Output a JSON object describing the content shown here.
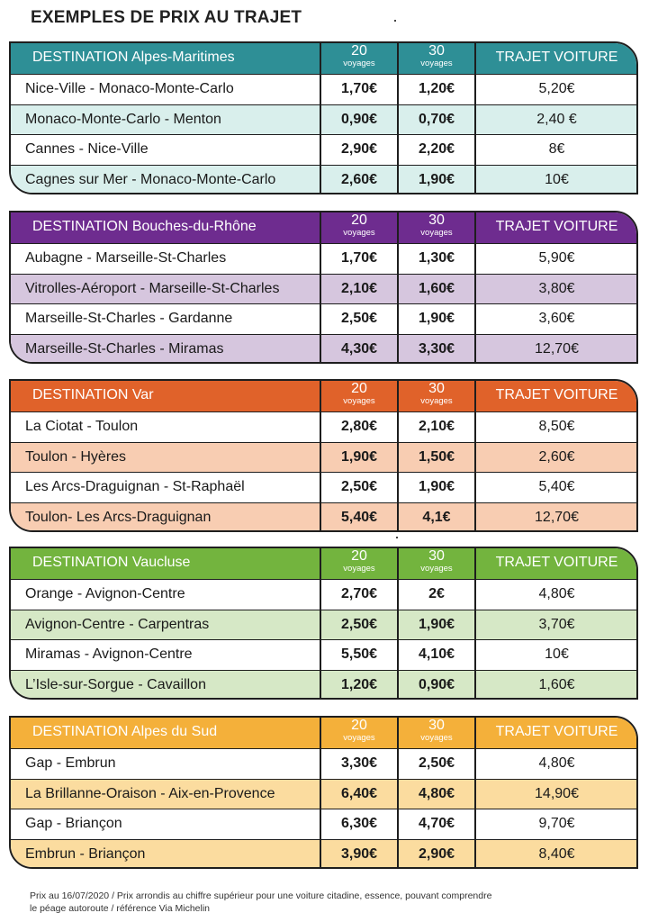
{
  "title": "EXEMPLES DE PRIX AU TRAJET",
  "columns": {
    "c20": "20",
    "c30": "30",
    "voyages": "voyages",
    "car": "TRAJET VOITURE"
  },
  "sections": [
    {
      "destination": "DESTINATION Alpes-Maritimes",
      "header_color": "#2e8f96",
      "alt_color": "#d9efec",
      "rows": [
        {
          "route": "Nice-Ville - Monaco-Monte-Carlo",
          "p20": "1,70€",
          "p30": "1,20€",
          "car": "5,20€"
        },
        {
          "route": "Monaco-Monte-Carlo - Menton",
          "p20": "0,90€",
          "p30": "0,70€",
          "car": "2,40 €"
        },
        {
          "route": "Cannes - Nice-Ville",
          "p20": "2,90€",
          "p30": "2,20€",
          "car": "8€"
        },
        {
          "route": "Cagnes sur Mer - Monaco-Monte-Carlo",
          "p20": "2,60€",
          "p30": "1,90€",
          "car": "10€"
        }
      ]
    },
    {
      "destination": "DESTINATION Bouches-du-Rhône",
      "header_color": "#6e2c8f",
      "alt_color": "#d6c6de",
      "rows": [
        {
          "route": "Aubagne - Marseille-St-Charles",
          "p20": "1,70€",
          "p30": "1,30€",
          "car": "5,90€"
        },
        {
          "route": "Vitrolles-Aéroport - Marseille-St-Charles",
          "p20": "2,10€",
          "p30": "1,60€",
          "car": "3,80€"
        },
        {
          "route": "Marseille-St-Charles - Gardanne",
          "p20": "2,50€",
          "p30": "1,90€",
          "car": "3,60€"
        },
        {
          "route": "Marseille-St-Charles - Miramas",
          "p20": "4,30€",
          "p30": "3,30€",
          "car": "12,70€"
        }
      ]
    },
    {
      "destination": "DESTINATION Var",
      "header_color": "#e0622a",
      "alt_color": "#f8cdb2",
      "rows": [
        {
          "route": "La Ciotat - Toulon",
          "p20": "2,80€",
          "p30": "2,10€",
          "car": "8,50€"
        },
        {
          "route": "Toulon - Hyères",
          "p20": "1,90€",
          "p30": "1,50€",
          "car": "2,60€"
        },
        {
          "route": "Les Arcs-Draguignan - St-Raphaël",
          "p20": "2,50€",
          "p30": "1,90€",
          "car": "5,40€"
        },
        {
          "route": "Toulon- Les Arcs-Draguignan",
          "p20": "5,40€",
          "p30": "4,1€",
          "car": "12,70€"
        }
      ]
    },
    {
      "destination": "DESTINATION Vaucluse",
      "header_color": "#73b43e",
      "alt_color": "#d6e8c6",
      "rows": [
        {
          "route": "Orange - Avignon-Centre",
          "p20": "2,70€",
          "p30": "2€",
          "car": "4,80€"
        },
        {
          "route": "Avignon-Centre  - Carpentras",
          "p20": "2,50€",
          "p30": "1,90€",
          "car": "3,70€"
        },
        {
          "route": "Miramas - Avignon-Centre",
          "p20": "5,50€",
          "p30": "4,10€",
          "car": "10€"
        },
        {
          "route": "L’Isle-sur-Sorgue - Cavaillon",
          "p20": "1,20€",
          "p30": "0,90€",
          "car": "1,60€"
        }
      ]
    },
    {
      "destination": "DESTINATION Alpes du Sud",
      "header_color": "#f4b03a",
      "alt_color": "#fbdc9f",
      "rows": [
        {
          "route": "Gap - Embrun",
          "p20": "3,30€",
          "p30": "2,50€",
          "car": "4,80€"
        },
        {
          "route": "La Brillanne-Oraison - Aix-en-Provence",
          "p20": "6,40€",
          "p30": "4,80€",
          "car": "14,90€"
        },
        {
          "route": "Gap - Briançon",
          "p20": "6,30€",
          "p30": "4,70€",
          "car": "9,70€"
        },
        {
          "route": "Embrun - Briançon",
          "p20": "3,90€",
          "p30": "2,90€",
          "car": "8,40€"
        }
      ]
    }
  ],
  "footer": {
    "line1": "Prix au 16/07/2020 / Prix arrondis au chiffre supérieur pour une voiture citadine, essence, pouvant comprendre",
    "line2": "le péage autoroute / référence Via Michelin"
  }
}
